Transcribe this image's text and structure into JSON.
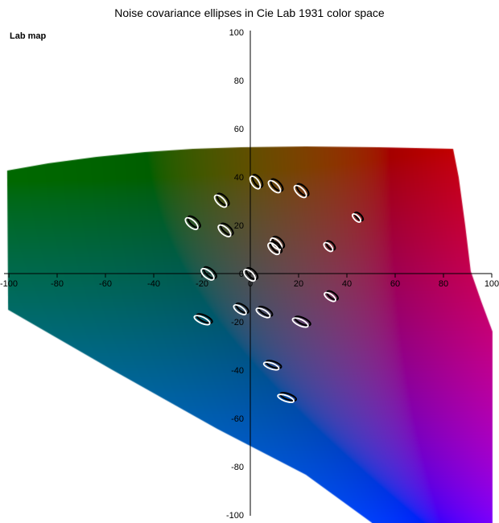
{
  "chart": {
    "title": "Noise covariance ellipses in Cie Lab 1931 color space",
    "corner_label": "Lab map"
  },
  "chart_data": {
    "type": "scatter",
    "subtype": "covariance-ellipse-map on Lab a*b* plane",
    "title": "Noise covariance ellipses in Cie Lab 1931 color space",
    "corner_label": "Lab map",
    "xlabel": "",
    "ylabel": "",
    "xlim": [
      -100,
      100
    ],
    "ylim": [
      -100,
      100
    ],
    "grid": false,
    "x_ticks": [
      {
        "v": -100,
        "label": "-100"
      },
      {
        "v": -80,
        "label": "-80"
      },
      {
        "v": -60,
        "label": "-60"
      },
      {
        "v": -40,
        "label": "-40"
      },
      {
        "v": -20,
        "label": "-20"
      },
      {
        "v": 0,
        "label": "0"
      },
      {
        "v": 20,
        "label": "20"
      },
      {
        "v": 40,
        "label": "40"
      },
      {
        "v": 60,
        "label": "60"
      },
      {
        "v": 80,
        "label": "80"
      },
      {
        "v": 100,
        "label": "100"
      }
    ],
    "y_ticks": [
      {
        "v": 100,
        "label": "100"
      },
      {
        "v": 80,
        "label": "80"
      },
      {
        "v": 60,
        "label": "60"
      },
      {
        "v": 40,
        "label": "40"
      },
      {
        "v": 20,
        "label": "20"
      },
      {
        "v": 0,
        "label": "0"
      },
      {
        "v": -20,
        "label": "-20"
      },
      {
        "v": -40,
        "label": "-40"
      },
      {
        "v": -60,
        "label": "-60"
      },
      {
        "v": -80,
        "label": "-80"
      },
      {
        "v": -100,
        "label": "-100"
      }
    ],
    "ellipses": [
      {
        "a": 2.0,
        "b": 37.7,
        "tilt_deg": 55,
        "r_major": 3.0,
        "r_minor": 1.5
      },
      {
        "a": 10.0,
        "b": 36.0,
        "tilt_deg": 45,
        "r_major": 3.2,
        "r_minor": 1.5
      },
      {
        "a": 20.7,
        "b": 34.0,
        "tilt_deg": 45,
        "r_major": 3.2,
        "r_minor": 1.5
      },
      {
        "a": -12.3,
        "b": 30.0,
        "tilt_deg": 45,
        "r_major": 3.2,
        "r_minor": 1.5
      },
      {
        "a": 44.0,
        "b": 23.0,
        "tilt_deg": 45,
        "r_major": 2.2,
        "r_minor": 1.0
      },
      {
        "a": -24.3,
        "b": 20.7,
        "tilt_deg": 42,
        "r_major": 3.2,
        "r_minor": 1.5
      },
      {
        "a": -10.7,
        "b": 17.7,
        "tilt_deg": 42,
        "r_major": 3.2,
        "r_minor": 1.5
      },
      {
        "a": 10.7,
        "b": 12.3,
        "tilt_deg": 45,
        "r_major": 3.0,
        "r_minor": 1.5
      },
      {
        "a": 9.7,
        "b": 10.3,
        "tilt_deg": 45,
        "r_major": 3.0,
        "r_minor": 1.5
      },
      {
        "a": 32.3,
        "b": 11.0,
        "tilt_deg": 45,
        "r_major": 2.3,
        "r_minor": 1.2
      },
      {
        "a": -17.7,
        "b": -0.3,
        "tilt_deg": 40,
        "r_major": 3.2,
        "r_minor": 1.5
      },
      {
        "a": -0.3,
        "b": -0.7,
        "tilt_deg": 45,
        "r_major": 3.0,
        "r_minor": 1.5
      },
      {
        "a": 33.0,
        "b": -9.7,
        "tilt_deg": 35,
        "r_major": 2.7,
        "r_minor": 1.2
      },
      {
        "a": -4.3,
        "b": -15.0,
        "tilt_deg": 35,
        "r_major": 3.0,
        "r_minor": 1.3
      },
      {
        "a": 5.3,
        "b": -16.3,
        "tilt_deg": 30,
        "r_major": 3.2,
        "r_minor": 1.3
      },
      {
        "a": -20.0,
        "b": -19.3,
        "tilt_deg": 25,
        "r_major": 3.5,
        "r_minor": 1.3
      },
      {
        "a": 20.7,
        "b": -20.3,
        "tilt_deg": 25,
        "r_major": 3.5,
        "r_minor": 1.3
      },
      {
        "a": 8.7,
        "b": -38.3,
        "tilt_deg": 20,
        "r_major": 3.3,
        "r_minor": 1.2
      },
      {
        "a": 14.7,
        "b": -51.7,
        "tilt_deg": 20,
        "r_major": 3.5,
        "r_minor": 1.2
      }
    ],
    "gamut": {
      "fill_rule": "per-pixel CIE Lab(L,a,b) to sRGB with channel clamping",
      "lab_L": 34,
      "polygon_ab": [
        [
          -100.7,
          42.7
        ],
        [
          -83.7,
          45.7
        ],
        [
          -63.7,
          48.3
        ],
        [
          -43.7,
          50.3
        ],
        [
          -23.7,
          51.7
        ],
        [
          -3.7,
          52.3
        ],
        [
          23,
          52.7
        ],
        [
          53,
          52.3
        ],
        [
          84,
          51.7
        ],
        [
          86.3,
          40
        ],
        [
          89,
          20
        ],
        [
          91.3,
          1
        ],
        [
          95.7,
          -11.7
        ],
        [
          100.3,
          -24
        ],
        [
          100.3,
          -103.5
        ],
        [
          50.7,
          -103.5
        ],
        [
          23,
          -83.3
        ],
        [
          -13.7,
          -64.3
        ],
        [
          -57,
          -40
        ],
        [
          -100.3,
          -15
        ]
      ]
    },
    "colors": {
      "background": "#ffffff",
      "axis": "#000000",
      "tick_label": "#000000",
      "ellipse_outline": "#ffffff",
      "ellipse_shadow": "#000000"
    },
    "legend_position": "none"
  }
}
